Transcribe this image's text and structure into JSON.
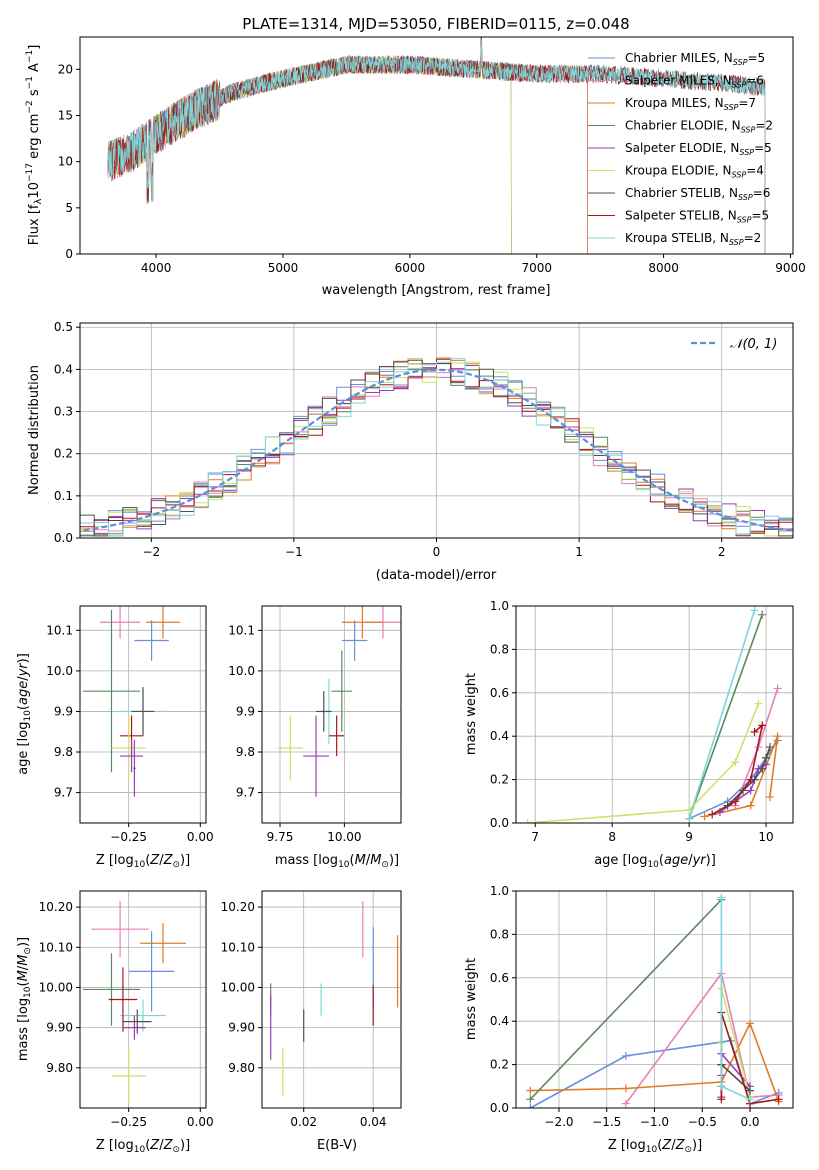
{
  "chart_data": [
    {
      "id": "spectrum",
      "type": "line",
      "title": "PLATE=1314, MJD=53050, FIBERID=0115, z=0.048",
      "xlabel": "wavelength [Angstrom, rest frame]",
      "ylabel": "Flux [f_λ 10^-17 erg cm^-2 s^-1 A^-1]",
      "xlim": [
        3400,
        9020
      ],
      "ylim": [
        0,
        23.5
      ],
      "xticks": [
        4000,
        5000,
        6000,
        7000,
        8000,
        9000
      ],
      "yticks": [
        0,
        5,
        10,
        15,
        20
      ],
      "grid": false,
      "legend_position": "top-right",
      "series": [
        {
          "name": "Chabrier MILES, N_SSP=5",
          "color": "#6b8ede",
          "x": [
            3620,
            3800,
            4000,
            4300,
            4600,
            5000,
            5500,
            6000,
            6500,
            7000,
            7400
          ]
        },
        {
          "name": "Salpeter MILES, N_SSP=6",
          "color": "#e77fb8",
          "x": [
            3620,
            3800,
            4000,
            4300,
            4600,
            5000,
            5500,
            6000,
            6500,
            7000,
            7400
          ]
        },
        {
          "name": "Kroupa MILES, N_SSP=7",
          "color": "#e07c27",
          "x": [
            3620,
            3800,
            4000,
            4300,
            4600,
            5000,
            5500,
            6000,
            6500,
            7000,
            7400
          ]
        },
        {
          "name": "Chabrier ELODIE, N_SSP=2",
          "color": "#5b8a5f",
          "x": [
            3900,
            4100,
            4400,
            4700,
            5000,
            5500,
            6000,
            6500,
            6800
          ]
        },
        {
          "name": "Salpeter ELODIE, N_SSP=5",
          "color": "#9b3dbb",
          "x": [
            3900,
            4100,
            4400,
            4700,
            5000,
            5500,
            6000,
            6500,
            6800
          ]
        },
        {
          "name": "Kroupa ELODIE, N_SSP=4",
          "color": "#cbe36a",
          "x": [
            3900,
            4100,
            4400,
            4700,
            5000,
            5500,
            6000,
            6500,
            6800
          ]
        },
        {
          "name": "Chabrier STELIB, N_SSP=6",
          "color": "#505050",
          "x": [
            3620,
            3800,
            4000,
            4300,
            4600,
            5000,
            5500,
            6000,
            6500,
            7000,
            7500,
            8000,
            8500,
            8800
          ]
        },
        {
          "name": "Salpeter STELIB, N_SSP=5",
          "color": "#a5191e",
          "x": [
            3620,
            3800,
            4000,
            4300,
            4600,
            5000,
            5500,
            6000,
            6500,
            7000,
            7500,
            8000,
            8500,
            8800
          ]
        },
        {
          "name": "Kroupa STELIB, N_SSP=2",
          "color": "#7fd6d8",
          "x": [
            3620,
            3800,
            4000,
            4300,
            4600,
            5000,
            5500,
            6000,
            6500,
            7000,
            7500,
            8000,
            8500,
            8800
          ]
        }
      ],
      "continuum": {
        "x": [
          3620,
          3800,
          4000,
          4300,
          4600,
          5000,
          5500,
          6000,
          6500,
          7000,
          7500,
          8000,
          8500,
          8800
        ],
        "y": [
          10,
          11,
          13,
          15.5,
          17.5,
          19,
          20.5,
          20.5,
          20,
          19.5,
          19.5,
          19,
          18.5,
          18
        ]
      }
    },
    {
      "id": "residuals",
      "type": "line",
      "xlabel": "(data-model)/error",
      "ylabel": "Normed distribution",
      "xlim": [
        -2.5,
        2.5
      ],
      "ylim": [
        0,
        0.51
      ],
      "xticks": [
        -2,
        -1,
        0,
        1,
        2
      ],
      "yticks": [
        0.0,
        0.1,
        0.2,
        0.3,
        0.4,
        0.5
      ],
      "grid": true,
      "legend_position": "top-right",
      "reference": {
        "name": "𝒩(0, 1)",
        "color": "#5b8ede",
        "mean": 0,
        "sigma": 1
      }
    },
    {
      "id": "z-age",
      "type": "scatter",
      "xlabel": "Z [log10(Z/Z⊙)]",
      "ylabel": "age [log10(age/yr)]",
      "xlim": [
        -0.42,
        0.02
      ],
      "ylim": [
        9.625,
        10.16
      ],
      "xticks": [
        -0.25,
        0.0
      ],
      "xtick_labels": [
        "−0.25",
        "0.00"
      ],
      "yticks": [
        9.7,
        9.8,
        9.9,
        10.0,
        10.1
      ],
      "grid": true,
      "points": [
        {
          "color": "#e77fb8",
          "x": -0.28,
          "xerr": 0.07,
          "y": 10.12,
          "yerr": 0.04
        },
        {
          "color": "#e07c27",
          "x": -0.13,
          "xerr": 0.06,
          "y": 10.12,
          "yerr": 0.04
        },
        {
          "color": "#6b8ede",
          "x": -0.17,
          "xerr": 0.06,
          "y": 10.075,
          "yerr": 0.05
        },
        {
          "color": "#5b8a5f",
          "x": -0.31,
          "xerr": 0.1,
          "y": 9.95,
          "yerr": 0.2
        },
        {
          "color": "#7fd6d8",
          "x": -0.2,
          "xerr": 0.08,
          "y": 9.9,
          "yerr": 0.05
        },
        {
          "color": "#505050",
          "x": -0.2,
          "xerr": 0.04,
          "y": 9.9,
          "yerr": 0.06
        },
        {
          "color": "#a5191e",
          "x": -0.24,
          "xerr": 0.04,
          "y": 9.84,
          "yerr": 0.05
        },
        {
          "color": "#cbe36a",
          "x": -0.25,
          "xerr": 0.06,
          "y": 9.81,
          "yerr": 0.08
        },
        {
          "color": "#9b3dbb",
          "x": -0.24,
          "xerr": 0.04,
          "y": 9.79,
          "yerr": 0.04
        },
        {
          "color": "#9b3dbb",
          "x": -0.23,
          "xerr": 0.005,
          "y": 9.76,
          "yerr": 0.07
        }
      ]
    },
    {
      "id": "mass-age",
      "type": "scatter",
      "xlabel": "mass [log10(M/M⊙)]",
      "xlim": [
        9.68,
        10.22
      ],
      "ylim": [
        9.625,
        10.16
      ],
      "xticks": [
        9.75,
        10.0
      ],
      "xtick_labels": [
        "9.75",
        "10.00"
      ],
      "yticks": [
        9.7,
        9.8,
        9.9,
        10.0,
        10.1
      ],
      "grid": true,
      "points": [
        {
          "color": "#e77fb8",
          "x": 10.15,
          "xerr": 0.07,
          "y": 10.12,
          "yerr": 0.04
        },
        {
          "color": "#e07c27",
          "x": 10.07,
          "xerr": 0.08,
          "y": 10.12,
          "yerr": 0.04
        },
        {
          "color": "#6b8ede",
          "x": 10.04,
          "xerr": 0.05,
          "y": 10.075,
          "yerr": 0.05
        },
        {
          "color": "#5b8a5f",
          "x": 9.99,
          "xerr": 0.04,
          "y": 9.95,
          "yerr": 0.1
        },
        {
          "color": "#7fd6d8",
          "x": 9.94,
          "xerr": 0.03,
          "y": 9.9,
          "yerr": 0.08
        },
        {
          "color": "#505050",
          "x": 9.92,
          "xerr": 0.03,
          "y": 9.9,
          "yerr": 0.05
        },
        {
          "color": "#a5191e",
          "x": 9.97,
          "xerr": 0.03,
          "y": 9.84,
          "yerr": 0.05
        },
        {
          "color": "#cbe36a",
          "x": 9.79,
          "xerr": 0.05,
          "y": 9.81,
          "yerr": 0.08
        },
        {
          "color": "#9b3dbb",
          "x": 9.89,
          "xerr": 0.05,
          "y": 9.79,
          "yerr": 0.1
        }
      ]
    },
    {
      "id": "age-weights",
      "type": "line",
      "xlabel": "age [log10(age/yr)]",
      "ylabel": "mass weight",
      "xlim": [
        6.75,
        10.35
      ],
      "ylim": [
        0,
        1.0
      ],
      "xticks": [
        7,
        8,
        9,
        10
      ],
      "yticks": [
        0.0,
        0.2,
        0.4,
        0.6,
        0.8,
        1.0
      ],
      "grid": true,
      "series": [
        {
          "color": "#6b8ede",
          "x": [
            9.0,
            9.5,
            9.8,
            10.0,
            10.15
          ],
          "y": [
            0.02,
            0.1,
            0.2,
            0.3,
            0.38
          ]
        },
        {
          "color": "#e77fb8",
          "x": [
            9.6,
            9.9,
            10.15
          ],
          "y": [
            0.08,
            0.35,
            0.62
          ]
        },
        {
          "color": "#e07c27",
          "x": [
            9.2,
            9.8,
            10.15,
            10.05
          ],
          "y": [
            0.03,
            0.08,
            0.4,
            0.12
          ]
        },
        {
          "color": "#5b8a5f",
          "x": [
            9.0,
            9.95
          ],
          "y": [
            0.02,
            0.96
          ]
        },
        {
          "color": "#9b3dbb",
          "x": [
            9.4,
            9.8,
            9.9,
            10.0
          ],
          "y": [
            0.05,
            0.15,
            0.25,
            0.27
          ]
        },
        {
          "color": "#cbe36a",
          "x": [
            6.9,
            9.0,
            9.6,
            9.9
          ],
          "y": [
            0.0,
            0.06,
            0.28,
            0.55
          ]
        },
        {
          "color": "#505050",
          "x": [
            9.5,
            9.7,
            9.85,
            9.95,
            10.0,
            10.05
          ],
          "y": [
            0.08,
            0.15,
            0.2,
            0.25,
            0.3,
            0.35
          ]
        },
        {
          "color": "#a5191e",
          "x": [
            9.3,
            9.6,
            9.8,
            9.95,
            9.85
          ],
          "y": [
            0.04,
            0.1,
            0.2,
            0.45,
            0.42
          ]
        },
        {
          "color": "#7fd6d8",
          "x": [
            9.0,
            9.85
          ],
          "y": [
            0.02,
            0.98
          ]
        }
      ]
    },
    {
      "id": "z-mass",
      "type": "scatter",
      "xlabel": "Z [log10(Z/Z⊙)]",
      "ylabel": "mass [log10(M/M⊙)]",
      "xlim": [
        -0.42,
        0.02
      ],
      "ylim": [
        9.7,
        10.24
      ],
      "xticks": [
        -0.25,
        0.0
      ],
      "xtick_labels": [
        "−0.25",
        "0.00"
      ],
      "yticks": [
        9.8,
        9.9,
        10.0,
        10.1,
        10.2
      ],
      "grid": true,
      "points": [
        {
          "color": "#e77fb8",
          "x": -0.28,
          "xerr": 0.1,
          "y": 10.145,
          "yerr": 0.07
        },
        {
          "color": "#e07c27",
          "x": -0.13,
          "xerr": 0.08,
          "y": 10.11,
          "yerr": 0.05
        },
        {
          "color": "#6b8ede",
          "x": -0.17,
          "xerr": 0.08,
          "y": 10.04,
          "yerr": 0.1
        },
        {
          "color": "#5b8a5f",
          "x": -0.31,
          "xerr": 0.1,
          "y": 9.995,
          "yerr": 0.09
        },
        {
          "color": "#7fd6d8",
          "x": -0.2,
          "xerr": 0.08,
          "y": 9.93,
          "yerr": 0.04
        },
        {
          "color": "#505050",
          "x": -0.22,
          "xerr": 0.05,
          "y": 9.915,
          "yerr": 0.03
        },
        {
          "color": "#a5191e",
          "x": -0.27,
          "xerr": 0.05,
          "y": 9.97,
          "yerr": 0.08
        },
        {
          "color": "#cbe36a",
          "x": -0.25,
          "xerr": 0.06,
          "y": 9.78,
          "yerr": 0.07
        },
        {
          "color": "#9b3dbb",
          "x": -0.23,
          "xerr": 0.04,
          "y": 9.9,
          "yerr": 0.03
        }
      ]
    },
    {
      "id": "ebv-mass",
      "type": "scatter",
      "xlabel": "E(B-V)",
      "xlim": [
        0.008,
        0.048
      ],
      "ylim": [
        9.7,
        10.24
      ],
      "xticks": [
        0.02,
        0.04
      ],
      "xtick_labels": [
        "0.02",
        "0.04"
      ],
      "yticks": [
        9.8,
        9.9,
        10.0,
        10.1,
        10.2
      ],
      "grid": true,
      "points": [
        {
          "color": "#e77fb8",
          "x": 0.037,
          "y": 10.145,
          "yerr": 0.07
        },
        {
          "color": "#e07c27",
          "x": 0.047,
          "y": 10.04,
          "yerr": 0.09
        },
        {
          "color": "#6b8ede",
          "x": 0.04,
          "y": 10.05,
          "yerr": 0.1
        },
        {
          "color": "#5b8a5f",
          "x": 0.0105,
          "y": 9.97,
          "yerr": 0.04
        },
        {
          "color": "#7fd6d8",
          "x": 0.025,
          "y": 9.97,
          "yerr": 0.04
        },
        {
          "color": "#505050",
          "x": 0.02,
          "y": 9.905,
          "yerr": 0.04
        },
        {
          "color": "#a5191e",
          "x": 0.04,
          "y": 9.955,
          "yerr": 0.05
        },
        {
          "color": "#cbe36a",
          "x": 0.014,
          "y": 9.79,
          "yerr": 0.06
        },
        {
          "color": "#9b3dbb",
          "x": 0.0105,
          "y": 9.9,
          "yerr": 0.08
        }
      ]
    },
    {
      "id": "z-weights",
      "type": "line",
      "xlabel": "Z [log10(Z/Z⊙)]",
      "ylabel": "mass weight",
      "xlim": [
        -2.45,
        0.45
      ],
      "ylim": [
        0,
        1.0
      ],
      "xticks": [
        -2.0,
        -1.5,
        -1.0,
        -0.5,
        0.0
      ],
      "xtick_labels": [
        "−2.0",
        "−1.5",
        "−1.0",
        "−0.5",
        "0.0"
      ],
      "yticks": [
        0.0,
        0.2,
        0.4,
        0.6,
        0.8,
        1.0
      ],
      "grid": true,
      "series": [
        {
          "color": "#6b8ede",
          "x": [
            -2.3,
            -1.3,
            -0.2,
            0.0,
            0.3
          ],
          "y": [
            0.0,
            0.24,
            0.31,
            0.02,
            0.07
          ]
        },
        {
          "color": "#e77fb8",
          "x": [
            -1.3,
            -0.3,
            0.0,
            0.3
          ],
          "y": [
            0.02,
            0.62,
            0.05,
            0.06
          ]
        },
        {
          "color": "#e07c27",
          "x": [
            -2.3,
            -1.3,
            -0.3,
            0.0,
            0.3
          ],
          "y": [
            0.08,
            0.09,
            0.12,
            0.39,
            0.03
          ]
        },
        {
          "color": "#5b8a5f",
          "x": [
            -2.3,
            -0.3
          ],
          "y": [
            0.04,
            0.96
          ]
        },
        {
          "color": "#9b3dbb",
          "x": [
            -0.3,
            -0.3,
            -0.3,
            0.0
          ],
          "y": [
            0.05,
            0.15,
            0.25,
            0.1
          ]
        },
        {
          "color": "#cbe36a",
          "x": [
            -0.3,
            -0.3,
            0.0
          ],
          "y": [
            0.3,
            0.55,
            0.05
          ]
        },
        {
          "color": "#505050",
          "x": [
            -0.3,
            -0.3,
            0.0
          ],
          "y": [
            0.1,
            0.2,
            0.08
          ]
        },
        {
          "color": "#a5191e",
          "x": [
            -0.3,
            -0.3,
            -0.3,
            0.0,
            0.3
          ],
          "y": [
            0.04,
            0.2,
            0.44,
            0.02,
            0.04
          ]
        },
        {
          "color": "#7fd6d8",
          "x": [
            -0.3,
            -0.3,
            0.0
          ],
          "y": [
            0.97,
            0.1,
            0.04
          ]
        }
      ]
    }
  ]
}
